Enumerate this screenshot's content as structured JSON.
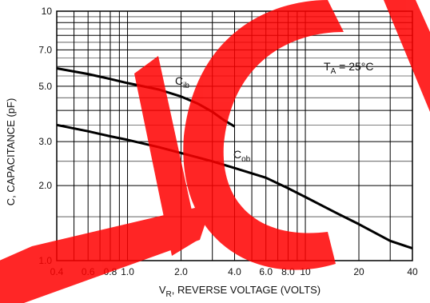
{
  "chart_data": {
    "type": "line",
    "xlabel_main": "V",
    "xlabel_sub": "R",
    "xlabel_rest": ", REVERSE VOLTAGE (VOLTS)",
    "ylabel": "C, CAPACITANCE (pF)",
    "x_scale": "log",
    "y_scale": "log",
    "xlim": [
      0.4,
      40
    ],
    "ylim": [
      1.0,
      10
    ],
    "grid": true,
    "x_tick_labels": [
      {
        "v": 0.4,
        "t": "0.4"
      },
      {
        "v": 0.6,
        "t": "0.6"
      },
      {
        "v": 0.8,
        "t": "0.8"
      },
      {
        "v": 1.0,
        "t": "1.0"
      },
      {
        "v": 2.0,
        "t": "2.0"
      },
      {
        "v": 4.0,
        "t": "4.0"
      },
      {
        "v": 6.0,
        "t": "6.0"
      },
      {
        "v": 8.0,
        "t": "8.0"
      },
      {
        "v": 10,
        "t": "10"
      },
      {
        "v": 20,
        "t": "20"
      },
      {
        "v": 40,
        "t": "40"
      }
    ],
    "y_tick_labels": [
      {
        "v": 1.0,
        "t": "1.0"
      },
      {
        "v": 2.0,
        "t": "2.0"
      },
      {
        "v": 3.0,
        "t": "3.0"
      },
      {
        "v": 5.0,
        "t": "5.0"
      },
      {
        "v": 7.0,
        "t": "7.0"
      },
      {
        "v": 10,
        "t": "10"
      }
    ],
    "x_grid": [
      0.4,
      0.5,
      0.6,
      0.7,
      0.8,
      0.9,
      1,
      2,
      3,
      4,
      5,
      6,
      7,
      8,
      9,
      10,
      20,
      30,
      40
    ],
    "y_grid": [
      1,
      2,
      3,
      4,
      5,
      6,
      7,
      8,
      9,
      10
    ],
    "annotation_main": "T",
    "annotation_sub": "A",
    "annotation_rest": " = 25°C",
    "series": [
      {
        "name_main": "C",
        "name_sub": "ib",
        "x": [
          0.4,
          0.6,
          0.8,
          1.0,
          1.5,
          2.0,
          2.5,
          3.0,
          3.5,
          4.0
        ],
        "y": [
          5.9,
          5.6,
          5.35,
          5.15,
          4.85,
          4.55,
          4.25,
          3.95,
          3.65,
          3.45
        ]
      },
      {
        "name_main": "C",
        "name_sub": "ob",
        "x": [
          0.4,
          0.6,
          0.8,
          1.0,
          1.5,
          2.0,
          3.0,
          4.0,
          6.0,
          8.0,
          10,
          15,
          20,
          30,
          40
        ],
        "y": [
          3.5,
          3.3,
          3.15,
          3.05,
          2.85,
          2.7,
          2.5,
          2.35,
          2.15,
          1.95,
          1.8,
          1.55,
          1.4,
          1.2,
          1.12
        ]
      }
    ],
    "colors": {
      "line": "#000000",
      "grid": "#000000",
      "watermark": "#ff0000"
    }
  }
}
